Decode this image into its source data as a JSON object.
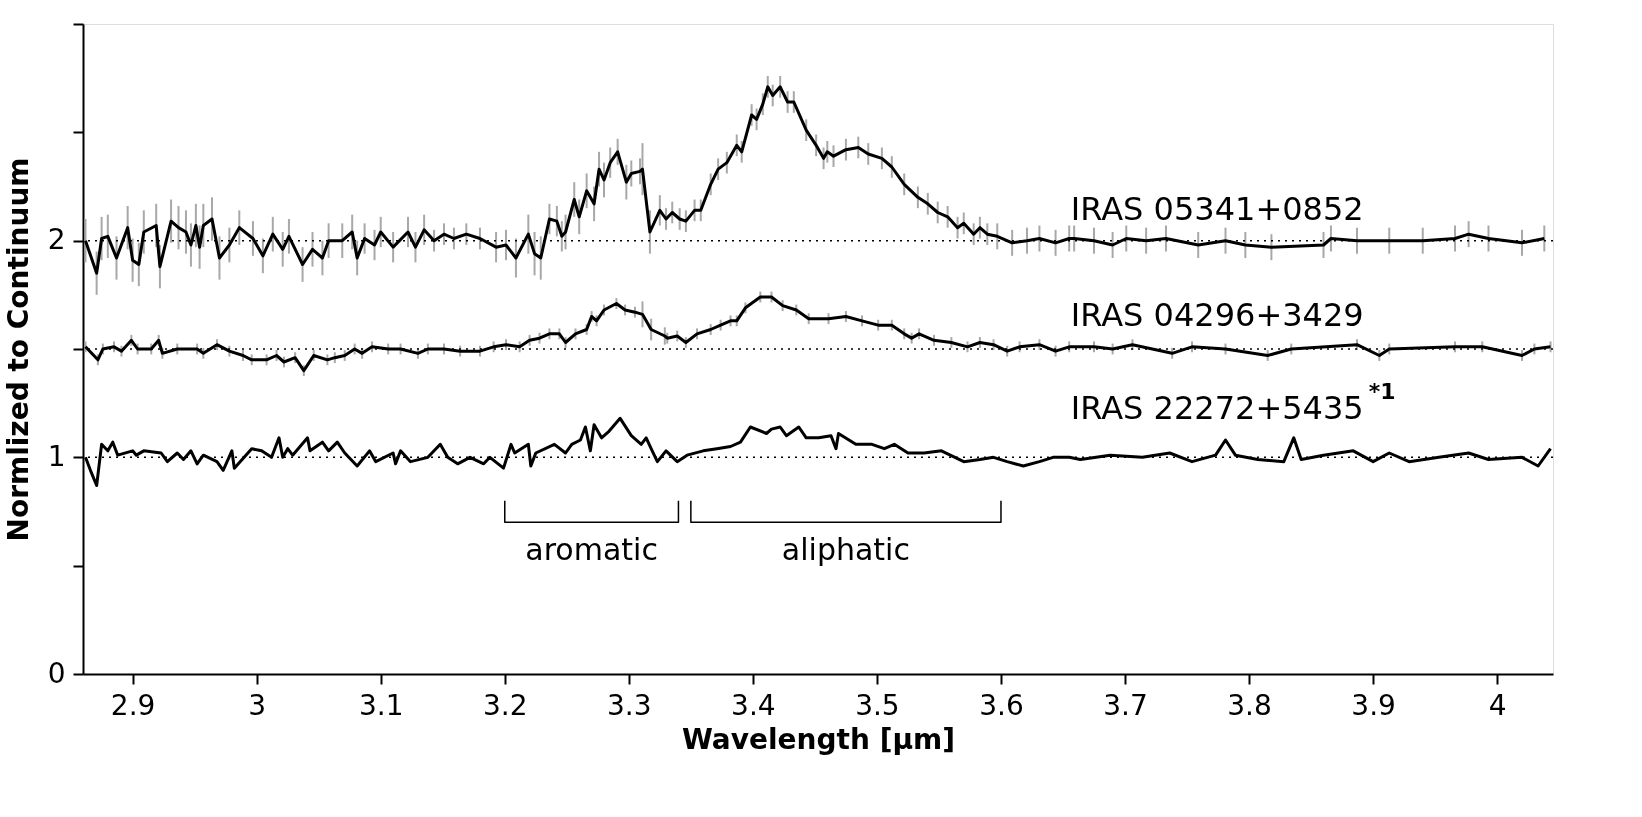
{
  "chart_data": {
    "type": "line",
    "xlabel": "Wavelength [μm]",
    "ylabel": "Normlized to Continuum",
    "xlim": [
      2.86,
      4.045
    ],
    "ylim": [
      0,
      3
    ],
    "xticks": [
      2.9,
      3,
      3.1,
      3.2,
      3.3,
      3.4,
      3.5,
      3.6,
      3.7,
      3.8,
      3.9,
      4
    ],
    "yticks": [
      0,
      {
        "value": 0.5,
        "label": null
      },
      1,
      {
        "value": 1.5,
        "label": null
      },
      2,
      {
        "value": 2.5,
        "label": null
      },
      {
        "value": 3,
        "label": null
      }
    ],
    "grid": false,
    "legend": false,
    "marker": "none",
    "line_style": "solid",
    "ref_lines": [
      {
        "axis": "y",
        "value": 1,
        "line_style": "dotted",
        "color": "#000000"
      },
      {
        "axis": "y",
        "value": 1.5,
        "line_style": "dotted",
        "color": "#000000"
      },
      {
        "axis": "y",
        "value": 2,
        "line_style": "dotted",
        "color": "#000000"
      }
    ],
    "annotations": [
      "aromatic",
      "aliphatic"
    ],
    "series": [
      {
        "type": "line",
        "color": "#000000",
        "x": [
          3.2,
          3.2,
          3.34,
          3.34
        ],
        "values": [
          0.8,
          0.7,
          0.7,
          0.8
        ]
      },
      {
        "type": "line",
        "color": "#000000",
        "x": [
          3.35,
          3.35,
          3.6,
          3.6
        ],
        "values": [
          0.8,
          0.7,
          0.7,
          0.8
        ]
      },
      {
        "name": "IRAS 05341+0852",
        "color": "#000000",
        "x": [
          2.862,
          2.871,
          2.875,
          2.88,
          2.887,
          2.896,
          2.9,
          2.905,
          2.909,
          2.919,
          2.922,
          2.931,
          2.937,
          2.943,
          2.947,
          2.951,
          2.954,
          2.957,
          2.964,
          2.97,
          2.978,
          2.986,
          2.997,
          3.005,
          3.013,
          3.021,
          3.026,
          3.037,
          3.045,
          3.053,
          3.058,
          3.069,
          3.077,
          3.081,
          3.087,
          3.095,
          3.1,
          3.11,
          3.122,
          3.128,
          3.135,
          3.143,
          3.151,
          3.159,
          3.169,
          3.18,
          3.193,
          3.201,
          3.209,
          3.219,
          3.224,
          3.229,
          3.236,
          3.242,
          3.246,
          3.249,
          3.256,
          3.26,
          3.266,
          3.272,
          3.276,
          3.28,
          3.285,
          3.291,
          3.298,
          3.302,
          3.309,
          3.311,
          3.317,
          3.325,
          3.33,
          3.335,
          3.341,
          3.346,
          3.353,
          3.358,
          3.366,
          3.372,
          3.379,
          3.387,
          3.391,
          3.399,
          3.403,
          3.408,
          3.412,
          3.416,
          3.422,
          3.428,
          3.433,
          3.443,
          3.451,
          3.457,
          3.46,
          3.465,
          3.475,
          3.485,
          3.493,
          3.504,
          3.512,
          3.522,
          3.533,
          3.541,
          3.549,
          3.557,
          3.565,
          3.57,
          3.578,
          3.583,
          3.589,
          3.597,
          3.609,
          3.621,
          3.631,
          3.644,
          3.655,
          3.659,
          3.675,
          3.69,
          3.701,
          3.717,
          3.733,
          3.759,
          3.781,
          3.797,
          3.818,
          3.86,
          3.866,
          3.887,
          3.913,
          3.94,
          3.966,
          3.977,
          3.993,
          4.02,
          4.038
        ],
        "values": [
          2.0,
          1.85,
          2.01,
          2.02,
          1.92,
          2.06,
          1.91,
          1.89,
          2.04,
          2.07,
          1.88,
          2.09,
          2.06,
          2.04,
          1.98,
          2.07,
          1.97,
          2.07,
          2.1,
          1.92,
          1.98,
          2.06,
          2.01,
          1.93,
          2.03,
          1.96,
          2.02,
          1.89,
          1.96,
          1.92,
          2.0,
          2.0,
          2.04,
          1.92,
          2.01,
          1.98,
          2.04,
          1.97,
          2.04,
          1.97,
          2.05,
          2.0,
          2.03,
          2.01,
          2.03,
          2.01,
          1.97,
          1.98,
          1.92,
          2.03,
          1.94,
          1.92,
          2.1,
          2.09,
          2.02,
          2.04,
          2.19,
          2.11,
          2.23,
          2.17,
          2.33,
          2.28,
          2.36,
          2.41,
          2.27,
          2.31,
          2.32,
          2.33,
          2.04,
          2.14,
          2.1,
          2.13,
          2.1,
          2.09,
          2.14,
          2.14,
          2.26,
          2.33,
          2.36,
          2.44,
          2.41,
          2.58,
          2.56,
          2.63,
          2.71,
          2.67,
          2.71,
          2.64,
          2.64,
          2.51,
          2.44,
          2.38,
          2.41,
          2.39,
          2.42,
          2.43,
          2.4,
          2.38,
          2.34,
          2.26,
          2.2,
          2.17,
          2.13,
          2.11,
          2.06,
          2.08,
          2.03,
          2.06,
          2.03,
          2.02,
          1.99,
          2.0,
          2.01,
          1.99,
          2.01,
          2.01,
          2.0,
          1.98,
          2.01,
          2.0,
          2.01,
          1.98,
          2.0,
          1.98,
          1.97,
          1.98,
          2.01,
          2.0,
          2.0,
          2.0,
          2.01,
          2.03,
          2.01,
          1.99,
          2.01
        ],
        "errors": [
          0.1,
          0.1,
          0.1,
          0.1,
          0.1,
          0.1,
          0.1,
          0.1,
          0.1,
          0.1,
          0.1,
          0.1,
          0.1,
          0.1,
          0.1,
          0.1,
          0.1,
          0.1,
          0.1,
          0.1,
          0.08,
          0.08,
          0.08,
          0.08,
          0.08,
          0.08,
          0.08,
          0.08,
          0.08,
          0.08,
          0.08,
          0.08,
          0.08,
          0.08,
          0.07,
          0.07,
          0.07,
          0.07,
          0.07,
          0.07,
          0.07,
          0.05,
          0.05,
          0.05,
          0.05,
          0.05,
          0.07,
          0.07,
          0.09,
          0.09,
          0.1,
          0.1,
          0.07,
          0.07,
          0.07,
          0.08,
          0.08,
          0.08,
          0.08,
          0.08,
          0.08,
          0.08,
          0.07,
          0.06,
          0.08,
          0.06,
          0.06,
          0.12,
          0.1,
          0.07,
          0.05,
          0.05,
          0.05,
          0.05,
          0.05,
          0.05,
          0.05,
          0.05,
          0.05,
          0.05,
          0.05,
          0.05,
          0.05,
          0.05,
          0.05,
          0.05,
          0.05,
          0.05,
          0.05,
          0.05,
          0.05,
          0.05,
          0.05,
          0.05,
          0.05,
          0.05,
          0.05,
          0.05,
          0.05,
          0.05,
          0.05,
          0.05,
          0.05,
          0.05,
          0.05,
          0.05,
          0.05,
          0.05,
          0.05,
          0.06,
          0.06,
          0.06,
          0.06,
          0.06,
          0.06,
          0.06,
          0.06,
          0.06,
          0.06,
          0.06,
          0.06,
          0.06,
          0.06,
          0.06,
          0.06,
          0.06,
          0.06,
          0.06,
          0.06,
          0.06,
          0.06,
          0.06,
          0.06,
          0.06,
          0.06
        ]
      },
      {
        "name": "IRAS 04296+3429",
        "color": "#000000",
        "x": [
          2.862,
          2.872,
          2.876,
          2.885,
          2.891,
          2.899,
          2.904,
          2.915,
          2.921,
          2.924,
          2.936,
          2.952,
          2.957,
          2.968,
          2.978,
          2.989,
          2.996,
          3.008,
          3.016,
          3.022,
          3.031,
          3.038,
          3.046,
          3.057,
          3.063,
          3.071,
          3.079,
          3.085,
          3.093,
          3.106,
          3.116,
          3.13,
          3.138,
          3.151,
          3.164,
          3.18,
          3.191,
          3.201,
          3.212,
          3.22,
          3.228,
          3.236,
          3.244,
          3.249,
          3.257,
          3.266,
          3.27,
          3.274,
          3.28,
          3.29,
          3.297,
          3.305,
          3.311,
          3.318,
          3.329,
          3.331,
          3.339,
          3.346,
          3.355,
          3.366,
          3.374,
          3.382,
          3.387,
          3.394,
          3.406,
          3.415,
          3.424,
          3.435,
          3.445,
          3.461,
          3.475,
          3.488,
          3.501,
          3.512,
          3.522,
          3.528,
          3.534,
          3.546,
          3.56,
          3.573,
          3.583,
          3.594,
          3.605,
          3.615,
          3.631,
          3.644,
          3.655,
          3.675,
          3.69,
          3.706,
          3.738,
          3.754,
          3.781,
          3.815,
          3.834,
          3.887,
          3.905,
          3.913,
          3.966,
          3.988,
          4.02,
          4.03,
          4.043
        ],
        "values": [
          1.51,
          1.45,
          1.5,
          1.51,
          1.49,
          1.54,
          1.5,
          1.5,
          1.54,
          1.48,
          1.5,
          1.5,
          1.48,
          1.52,
          1.49,
          1.47,
          1.45,
          1.45,
          1.47,
          1.44,
          1.46,
          1.4,
          1.47,
          1.45,
          1.46,
          1.47,
          1.5,
          1.48,
          1.51,
          1.5,
          1.5,
          1.48,
          1.5,
          1.5,
          1.49,
          1.49,
          1.51,
          1.52,
          1.51,
          1.54,
          1.55,
          1.57,
          1.57,
          1.53,
          1.57,
          1.59,
          1.65,
          1.63,
          1.68,
          1.71,
          1.68,
          1.67,
          1.66,
          1.59,
          1.56,
          1.55,
          1.56,
          1.53,
          1.57,
          1.59,
          1.61,
          1.63,
          1.63,
          1.69,
          1.74,
          1.74,
          1.7,
          1.68,
          1.64,
          1.64,
          1.65,
          1.63,
          1.61,
          1.61,
          1.57,
          1.55,
          1.57,
          1.54,
          1.53,
          1.51,
          1.53,
          1.52,
          1.49,
          1.51,
          1.52,
          1.49,
          1.51,
          1.51,
          1.5,
          1.52,
          1.48,
          1.51,
          1.5,
          1.47,
          1.5,
          1.52,
          1.47,
          1.5,
          1.51,
          1.51,
          1.47,
          1.5,
          1.51
        ],
        "errors": [
          0.025,
          0.025,
          0.025,
          0.025,
          0.025,
          0.025,
          0.025,
          0.025,
          0.025,
          0.025,
          0.025,
          0.025,
          0.025,
          0.025,
          0.025,
          0.025,
          0.025,
          0.025,
          0.025,
          0.025,
          0.025,
          0.025,
          0.025,
          0.025,
          0.025,
          0.025,
          0.025,
          0.025,
          0.025,
          0.025,
          0.025,
          0.025,
          0.025,
          0.025,
          0.025,
          0.025,
          0.025,
          0.025,
          0.025,
          0.025,
          0.025,
          0.025,
          0.025,
          0.025,
          0.025,
          0.025,
          0.025,
          0.025,
          0.025,
          0.025,
          0.025,
          0.025,
          0.06,
          0.05,
          0.04,
          0.025,
          0.025,
          0.025,
          0.025,
          0.025,
          0.025,
          0.025,
          0.025,
          0.025,
          0.025,
          0.025,
          0.025,
          0.025,
          0.025,
          0.025,
          0.025,
          0.025,
          0.025,
          0.025,
          0.025,
          0.025,
          0.025,
          0.025,
          0.025,
          0.025,
          0.025,
          0.025,
          0.025,
          0.025,
          0.025,
          0.025,
          0.025,
          0.025,
          0.025,
          0.025,
          0.025,
          0.025,
          0.025,
          0.025,
          0.025,
          0.025,
          0.025,
          0.025,
          0.025,
          0.025,
          0.025,
          0.025,
          0.025
        ]
      },
      {
        "name": "IRAS 22272+5435$^{*1}$",
        "color": "#000000",
        "x": [
          2.862,
          2.866,
          2.871,
          2.875,
          2.88,
          2.884,
          2.888,
          2.9,
          2.903,
          2.909,
          2.923,
          2.928,
          2.936,
          2.941,
          2.947,
          2.952,
          2.957,
          2.968,
          2.973,
          2.98,
          2.982,
          2.996,
          3.004,
          3.012,
          3.018,
          3.021,
          3.025,
          3.029,
          3.041,
          3.043,
          3.053,
          3.058,
          3.065,
          3.071,
          3.081,
          3.091,
          3.096,
          3.11,
          3.112,
          3.116,
          3.124,
          3.138,
          3.148,
          3.154,
          3.162,
          3.172,
          3.183,
          3.188,
          3.199,
          3.205,
          3.208,
          3.219,
          3.221,
          3.225,
          3.24,
          3.249,
          3.254,
          3.261,
          3.265,
          3.269,
          3.272,
          3.278,
          3.284,
          3.293,
          3.302,
          3.31,
          3.314,
          3.318,
          3.323,
          3.33,
          3.339,
          3.347,
          3.36,
          3.371,
          3.382,
          3.39,
          3.398,
          3.411,
          3.415,
          3.422,
          3.427,
          3.437,
          3.443,
          3.453,
          3.463,
          3.467,
          3.469,
          3.483,
          3.496,
          3.506,
          3.514,
          3.525,
          3.538,
          3.552,
          3.57,
          3.583,
          3.594,
          3.605,
          3.618,
          3.631,
          3.642,
          3.655,
          3.664,
          3.688,
          3.714,
          3.736,
          3.754,
          3.773,
          3.781,
          3.789,
          3.807,
          3.828,
          3.836,
          3.842,
          3.86,
          3.884,
          3.9,
          3.913,
          3.929,
          3.953,
          3.977,
          3.993,
          4.02,
          4.033,
          4.043
        ],
        "values": [
          1.0,
          0.94,
          0.87,
          1.06,
          1.03,
          1.07,
          1.01,
          1.03,
          1.01,
          1.03,
          1.02,
          0.98,
          1.02,
          0.99,
          1.03,
          0.97,
          1.01,
          0.98,
          0.94,
          1.03,
          0.95,
          1.04,
          1.03,
          1.0,
          1.09,
          1.0,
          1.04,
          1.01,
          1.09,
          1.03,
          1.07,
          1.03,
          1.07,
          1.02,
          0.96,
          1.03,
          0.98,
          1.02,
          0.97,
          1.03,
          0.98,
          1.0,
          1.06,
          1.0,
          0.97,
          1.0,
          0.97,
          1.0,
          0.95,
          1.06,
          1.02,
          1.06,
          0.96,
          1.02,
          1.06,
          1.02,
          1.06,
          1.08,
          1.14,
          1.03,
          1.15,
          1.09,
          1.12,
          1.18,
          1.1,
          1.06,
          1.09,
          1.04,
          0.98,
          1.03,
          0.98,
          1.01,
          1.03,
          1.04,
          1.05,
          1.07,
          1.14,
          1.11,
          1.13,
          1.14,
          1.1,
          1.14,
          1.09,
          1.09,
          1.1,
          1.04,
          1.11,
          1.06,
          1.06,
          1.04,
          1.06,
          1.02,
          1.02,
          1.03,
          0.98,
          0.99,
          1.0,
          0.98,
          0.96,
          0.98,
          1.0,
          1.0,
          0.99,
          1.01,
          1.0,
          1.02,
          0.98,
          1.01,
          1.08,
          1.01,
          0.99,
          0.98,
          1.09,
          0.99,
          1.01,
          1.03,
          0.98,
          1.02,
          0.98,
          1.0,
          1.02,
          0.99,
          1.0,
          0.96,
          1.04
        ]
      }
    ]
  }
}
